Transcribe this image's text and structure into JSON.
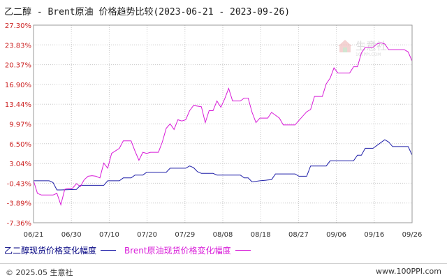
{
  "title": "乙二醇 - Brent原油 价格趋势比较(2023-06-21 - 2023-09-26)",
  "watermark": {
    "text": "生意社",
    "sub": "100PPI.COM"
  },
  "footer": {
    "copyright": "© 2025.05 生意社",
    "site": "www.100PPI.com"
  },
  "colors": {
    "series1": "#1f1fa8",
    "series2": "#d81bd8",
    "ytick": "#cc2222",
    "grid": "#c8c8c8",
    "plot_bg": "#ffffff"
  },
  "chart_data": {
    "type": "line",
    "title": "乙二醇 - Brent原油 价格趋势比较(2023-06-21 - 2023-09-26)",
    "xlabel": "",
    "ylabel": "",
    "x_ticks": [
      "06/21",
      "06/30",
      "07/10",
      "07/20",
      "07/29",
      "08/08",
      "08/18",
      "08/27",
      "09/06",
      "09/16",
      "09/26"
    ],
    "y_ticks": [
      "27.30%",
      "23.83%",
      "20.37%",
      "16.90%",
      "13.44%",
      "9.97%",
      "6.50%",
      "3.04%",
      "-0.43%",
      "-3.89%",
      "-7.36%"
    ],
    "ylim": [
      -7.36,
      27.3
    ],
    "xlim": [
      "2023-06-21",
      "2023-09-26"
    ],
    "grid": true,
    "legend_placement": "bottom-left",
    "series": [
      {
        "name": "乙二醇现货价格变化幅度",
        "color": "#1f1fa8",
        "points": [
          [
            "2023-06-21",
            0.0
          ],
          [
            "2023-06-25",
            0.0
          ],
          [
            "2023-06-26",
            -0.3
          ],
          [
            "2023-06-27",
            -1.6
          ],
          [
            "2023-06-28",
            -1.6
          ],
          [
            "2023-07-02",
            -1.5
          ],
          [
            "2023-07-03",
            -0.8
          ],
          [
            "2023-07-09",
            -0.8
          ],
          [
            "2023-07-10",
            0.0
          ],
          [
            "2023-07-13",
            0.0
          ],
          [
            "2023-07-14",
            0.5
          ],
          [
            "2023-07-16",
            0.5
          ],
          [
            "2023-07-17",
            1.0
          ],
          [
            "2023-07-19",
            1.0
          ],
          [
            "2023-07-20",
            1.5
          ],
          [
            "2023-07-25",
            1.5
          ],
          [
            "2023-07-26",
            2.2
          ],
          [
            "2023-07-30",
            2.2
          ],
          [
            "2023-07-31",
            2.6
          ],
          [
            "2023-08-01",
            2.3
          ],
          [
            "2023-08-02",
            1.6
          ],
          [
            "2023-08-03",
            1.3
          ],
          [
            "2023-08-06",
            1.3
          ],
          [
            "2023-08-07",
            1.0
          ],
          [
            "2023-08-13",
            1.0
          ],
          [
            "2023-08-14",
            0.5
          ],
          [
            "2023-08-15",
            0.5
          ],
          [
            "2023-08-16",
            -0.2
          ],
          [
            "2023-08-18",
            0.0
          ],
          [
            "2023-08-21",
            0.2
          ],
          [
            "2023-08-22",
            1.2
          ],
          [
            "2023-08-27",
            1.2
          ],
          [
            "2023-08-28",
            0.8
          ],
          [
            "2023-08-30",
            0.8
          ],
          [
            "2023-08-31",
            2.6
          ],
          [
            "2023-09-04",
            2.6
          ],
          [
            "2023-09-05",
            3.5
          ],
          [
            "2023-09-11",
            3.5
          ],
          [
            "2023-09-12",
            4.5
          ],
          [
            "2023-09-13",
            4.5
          ],
          [
            "2023-09-14",
            5.7
          ],
          [
            "2023-09-16",
            5.7
          ],
          [
            "2023-09-18",
            6.7
          ],
          [
            "2023-09-19",
            7.2
          ],
          [
            "2023-09-20",
            6.8
          ],
          [
            "2023-09-21",
            6.0
          ],
          [
            "2023-09-25",
            6.0
          ],
          [
            "2023-09-26",
            4.5
          ]
        ]
      },
      {
        "name": "Brent原油现货价格变化幅度",
        "color": "#d81bd8",
        "points": [
          [
            "2023-06-21",
            0.0
          ],
          [
            "2023-06-22",
            -2.2
          ],
          [
            "2023-06-23",
            -2.5
          ],
          [
            "2023-06-26",
            -2.5
          ],
          [
            "2023-06-27",
            -2.2
          ],
          [
            "2023-06-28",
            -4.2
          ],
          [
            "2023-06-29",
            -1.5
          ],
          [
            "2023-06-30",
            -1.3
          ],
          [
            "2023-07-01",
            -1.3
          ],
          [
            "2023-07-02",
            -0.5
          ],
          [
            "2023-07-03",
            -1.0
          ],
          [
            "2023-07-04",
            0.2
          ],
          [
            "2023-07-05",
            0.8
          ],
          [
            "2023-07-06",
            0.9
          ],
          [
            "2023-07-07",
            0.8
          ],
          [
            "2023-07-08",
            0.5
          ],
          [
            "2023-07-09",
            3.1
          ],
          [
            "2023-07-10",
            2.2
          ],
          [
            "2023-07-11",
            4.8
          ],
          [
            "2023-07-13",
            5.7
          ],
          [
            "2023-07-14",
            7.0
          ],
          [
            "2023-07-16",
            7.0
          ],
          [
            "2023-07-17",
            5.2
          ],
          [
            "2023-07-18",
            3.6
          ],
          [
            "2023-07-19",
            5.0
          ],
          [
            "2023-07-20",
            4.8
          ],
          [
            "2023-07-21",
            5.0
          ],
          [
            "2023-07-23",
            5.0
          ],
          [
            "2023-07-24",
            6.8
          ],
          [
            "2023-07-25",
            9.2
          ],
          [
            "2023-07-26",
            10.0
          ],
          [
            "2023-07-27",
            9.0
          ],
          [
            "2023-07-28",
            10.7
          ],
          [
            "2023-07-29",
            10.5
          ],
          [
            "2023-07-30",
            10.7
          ],
          [
            "2023-07-31",
            12.3
          ],
          [
            "2023-08-01",
            13.2
          ],
          [
            "2023-08-03",
            13.0
          ],
          [
            "2023-08-04",
            10.2
          ],
          [
            "2023-08-05",
            12.3
          ],
          [
            "2023-08-06",
            12.3
          ],
          [
            "2023-08-07",
            14.0
          ],
          [
            "2023-08-08",
            12.9
          ],
          [
            "2023-08-09",
            14.4
          ],
          [
            "2023-08-10",
            16.2
          ],
          [
            "2023-08-11",
            14.0
          ],
          [
            "2023-08-13",
            14.0
          ],
          [
            "2023-08-14",
            14.5
          ],
          [
            "2023-08-15",
            14.5
          ],
          [
            "2023-08-16",
            12.0
          ],
          [
            "2023-08-17",
            10.2
          ],
          [
            "2023-08-18",
            11.0
          ],
          [
            "2023-08-20",
            11.0
          ],
          [
            "2023-08-21",
            12.0
          ],
          [
            "2023-08-22",
            11.5
          ],
          [
            "2023-08-23",
            11.0
          ],
          [
            "2023-08-24",
            9.8
          ],
          [
            "2023-08-27",
            9.8
          ],
          [
            "2023-08-28",
            10.6
          ],
          [
            "2023-08-30",
            12.1
          ],
          [
            "2023-08-31",
            12.5
          ],
          [
            "2023-09-01",
            14.8
          ],
          [
            "2023-09-03",
            14.8
          ],
          [
            "2023-09-04",
            17.0
          ],
          [
            "2023-09-05",
            18.0
          ],
          [
            "2023-09-06",
            19.8
          ],
          [
            "2023-09-07",
            18.9
          ],
          [
            "2023-09-10",
            18.9
          ],
          [
            "2023-09-11",
            20.0
          ],
          [
            "2023-09-12",
            20.0
          ],
          [
            "2023-09-13",
            22.4
          ],
          [
            "2023-09-14",
            23.4
          ],
          [
            "2023-09-16",
            23.4
          ],
          [
            "2023-09-17",
            24.0
          ],
          [
            "2023-09-18",
            24.2
          ],
          [
            "2023-09-19",
            24.0
          ],
          [
            "2023-09-20",
            23.0
          ],
          [
            "2023-09-24",
            23.0
          ],
          [
            "2023-09-25",
            22.6
          ],
          [
            "2023-09-26",
            21.0
          ]
        ]
      }
    ]
  }
}
